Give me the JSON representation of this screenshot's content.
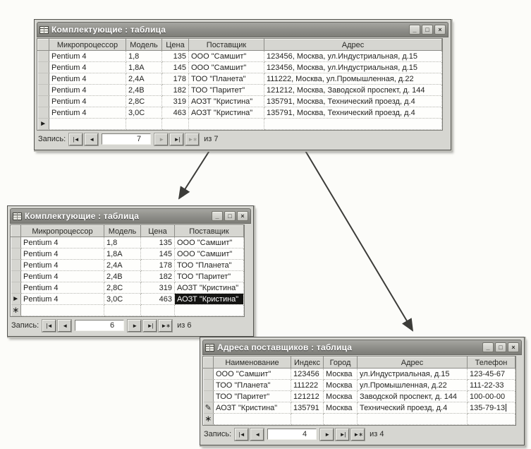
{
  "marker_glyphs": {
    "current": "►",
    "new": "∗",
    "edit": "✎"
  },
  "window_controls": [
    {
      "name": "minimize-button",
      "glyph": "_"
    },
    {
      "name": "maximize-button",
      "glyph": "□"
    },
    {
      "name": "close-button",
      "glyph": "×"
    }
  ],
  "windows": [
    {
      "title": "Комплектующие : таблица",
      "columns": [
        "Микропроцессор",
        "Модель",
        "Цена",
        "Поставщик",
        "Адрес"
      ],
      "rows": [
        {
          "marker": "",
          "cells": [
            "Pentium 4",
            "1,8",
            "135",
            "ООО \"Самшит\"",
            "123456, Москва, ул.Индустриальная, д.15"
          ]
        },
        {
          "marker": "",
          "cells": [
            "Pentium 4",
            "1,8A",
            "145",
            "ООО \"Самшит\"",
            "123456, Москва, ул.Индустриальная, д.15"
          ]
        },
        {
          "marker": "",
          "cells": [
            "Pentium 4",
            "2,4A",
            "178",
            "ТОО \"Планета\"",
            "111222, Москва, ул.Промышленная, д.22"
          ]
        },
        {
          "marker": "",
          "cells": [
            "Pentium 4",
            "2,4B",
            "182",
            "ТОО \"Паритет\"",
            "121212, Москва, Заводской проспект, д. 144"
          ]
        },
        {
          "marker": "",
          "cells": [
            "Pentium 4",
            "2,8C",
            "319",
            "АОЗТ \"Кристина\"",
            "135791, Москва, Технический проезд, д.4"
          ]
        },
        {
          "marker": "",
          "cells": [
            "Pentium 4",
            "3,0C",
            "463",
            "АОЗТ \"Кристина\"",
            "135791, Москва, Технический проезд, д.4"
          ]
        },
        {
          "marker": "current",
          "cells": [
            "",
            "",
            "",
            "",
            ""
          ]
        }
      ],
      "nav": {
        "label": "Запись:",
        "current": "7",
        "of_label": "из 7",
        "buttons": [
          {
            "name": "first-record-button",
            "glyph": "|◄",
            "disabled": false
          },
          {
            "name": "previous-record-button",
            "glyph": "◄",
            "disabled": false
          },
          {
            "name": "next-record-button",
            "glyph": "►",
            "disabled": true
          },
          {
            "name": "last-record-button",
            "glyph": "►|",
            "disabled": false
          },
          {
            "name": "new-record-button",
            "glyph": "►∗",
            "disabled": true
          }
        ]
      }
    },
    {
      "title": "Комплектующие : таблица",
      "columns": [
        "Микропроцессор",
        "Модель",
        "Цена",
        "Поставщик"
      ],
      "rows": [
        {
          "marker": "",
          "cells": [
            "Pentium 4",
            "1,8",
            "135",
            "ООО \"Самшит\""
          ]
        },
        {
          "marker": "",
          "cells": [
            "Pentium 4",
            "1,8A",
            "145",
            "ООО \"Самшит\""
          ]
        },
        {
          "marker": "",
          "cells": [
            "Pentium 4",
            "2,4A",
            "178",
            "ТОО \"Планета\""
          ]
        },
        {
          "marker": "",
          "cells": [
            "Pentium 4",
            "2,4B",
            "182",
            "ТОО \"Паритет\""
          ]
        },
        {
          "marker": "",
          "cells": [
            "Pentium 4",
            "2,8C",
            "319",
            "АОЗТ \"Кристина\""
          ]
        },
        {
          "marker": "current",
          "cells": [
            "Pentium 4",
            "3,0C",
            "463",
            "АОЗТ \"Кристина\""
          ]
        },
        {
          "marker": "new",
          "cells": [
            "",
            "",
            "",
            ""
          ]
        }
      ],
      "highlight": {
        "row": 5,
        "col": 3
      },
      "nav": {
        "label": "Запись:",
        "current": "6",
        "of_label": "из 6",
        "buttons": [
          {
            "name": "first-record-button",
            "glyph": "|◄",
            "disabled": false
          },
          {
            "name": "previous-record-button",
            "glyph": "◄",
            "disabled": false
          },
          {
            "name": "next-record-button",
            "glyph": "►",
            "disabled": false
          },
          {
            "name": "last-record-button",
            "glyph": "►|",
            "disabled": false
          },
          {
            "name": "new-record-button",
            "glyph": "►∗",
            "disabled": false
          }
        ]
      }
    },
    {
      "title": "Адреса поставщиков : таблица",
      "columns": [
        "Наименование",
        "Индекс",
        "Город",
        "Адрес",
        "Телефон"
      ],
      "rows": [
        {
          "marker": "",
          "cells": [
            "ООО \"Самшит\"",
            "123456",
            "Москва",
            "ул.Индустриальная, д.15",
            "123-45-67"
          ]
        },
        {
          "marker": "",
          "cells": [
            "ТОО \"Планета\"",
            "111222",
            "Москва",
            "ул.Промышленная, д.22",
            "111-22-33"
          ]
        },
        {
          "marker": "",
          "cells": [
            "ТОО \"Паритет\"",
            "121212",
            "Москва",
            "Заводской проспект, д. 144",
            "100-00-00"
          ]
        },
        {
          "marker": "edit",
          "cells": [
            "АОЗТ \"Кристина\"",
            "135791",
            "Москва",
            "Технический проезд, д.4",
            "135-79-13"
          ]
        },
        {
          "marker": "new",
          "cells": [
            "",
            "",
            "",
            "",
            ""
          ]
        }
      ],
      "caret": {
        "row": 3,
        "col": 4
      },
      "nav": {
        "label": "Запись:",
        "current": "4",
        "of_label": "из 4",
        "buttons": [
          {
            "name": "first-record-button",
            "glyph": "|◄",
            "disabled": false
          },
          {
            "name": "previous-record-button",
            "glyph": "◄",
            "disabled": false
          },
          {
            "name": "next-record-button",
            "glyph": "►",
            "disabled": false
          },
          {
            "name": "last-record-button",
            "glyph": "►|",
            "disabled": false
          },
          {
            "name": "new-record-button",
            "glyph": "►∗",
            "disabled": false
          }
        ]
      }
    }
  ]
}
